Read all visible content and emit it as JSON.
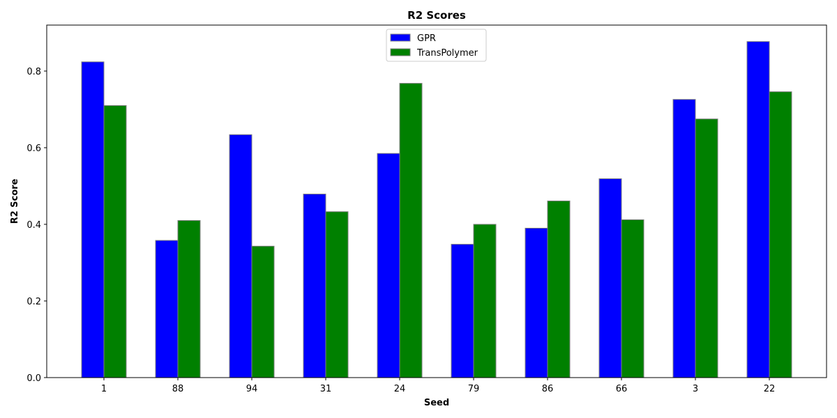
{
  "chart_data": {
    "type": "bar",
    "title": "R2 Scores",
    "xlabel": "Seed",
    "ylabel": "R2 Score",
    "categories": [
      "1",
      "88",
      "94",
      "31",
      "24",
      "79",
      "86",
      "66",
      "3",
      "22"
    ],
    "series": [
      {
        "name": "GPR",
        "color": "#0000ff",
        "values": [
          0.824,
          0.358,
          0.634,
          0.479,
          0.585,
          0.348,
          0.39,
          0.519,
          0.726,
          0.877
        ]
      },
      {
        "name": "TransPolymer",
        "color": "#008000",
        "values": [
          0.71,
          0.41,
          0.343,
          0.433,
          0.768,
          0.4,
          0.461,
          0.412,
          0.675,
          0.746
        ]
      }
    ],
    "ylim": [
      0,
      0.92
    ],
    "yticks": [
      "0.0",
      "0.2",
      "0.4",
      "0.6",
      "0.8"
    ],
    "grid": false,
    "legend_position": "top-center"
  }
}
